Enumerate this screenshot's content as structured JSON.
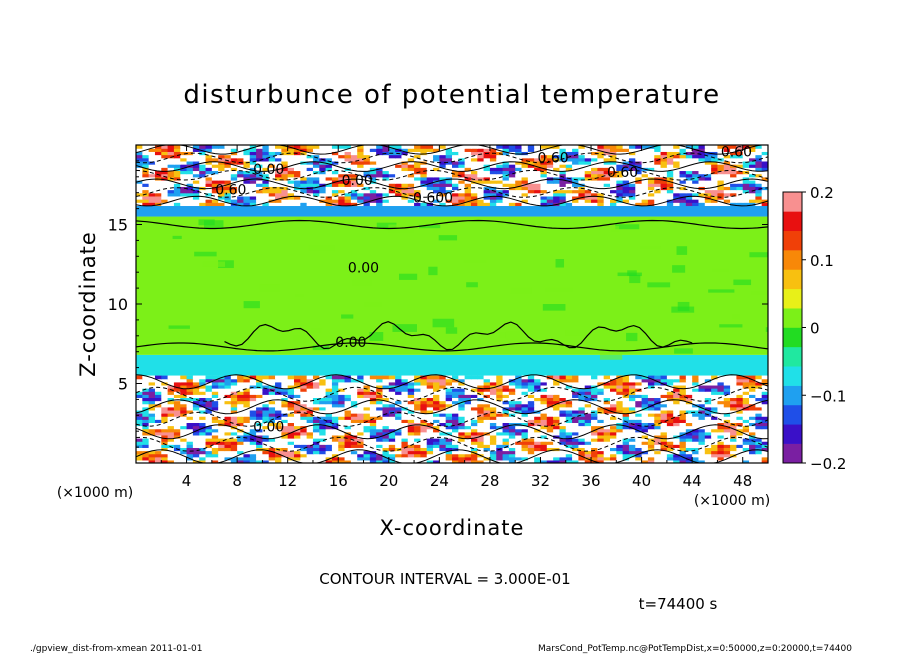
{
  "chart_data": {
    "type": "heatmap",
    "title": "disturbunce of potential temperature",
    "xlabel": "X-coordinate",
    "ylabel": "Z-coordinate",
    "x_unit": "(×1000 m)",
    "z_unit": "(×1000 m)",
    "xlim": [
      0,
      50
    ],
    "ylim": [
      0,
      20
    ],
    "x_ticks": [
      "4",
      "8",
      "12",
      "16",
      "20",
      "24",
      "28",
      "32",
      "36",
      "40",
      "44",
      "48"
    ],
    "y_ticks": [
      "5",
      "10",
      "15"
    ],
    "colorbar": {
      "range": [
        -0.2,
        0.2
      ],
      "tick_labels": [
        "0.2",
        "0.1",
        "0",
        "−0.1",
        "−0.2"
      ],
      "colors": [
        "#7a1fa2",
        "#3a10c8",
        "#1f4fe8",
        "#1fa0f0",
        "#20e0e8",
        "#20e8a0",
        "#22dc22",
        "#7cf018",
        "#e8f018",
        "#f8c010",
        "#f88808",
        "#f04008",
        "#e81010",
        "#f89090"
      ]
    },
    "layers": [
      {
        "z": [
          0,
          5.5
        ],
        "description": "strong mixed disturbances",
        "dominant_values": [
          -0.2,
          0.2
        ]
      },
      {
        "z": [
          5.5,
          6.8
        ],
        "value": -0.08
      },
      {
        "z": [
          6.8,
          15.5
        ],
        "value": 0.0
      },
      {
        "z": [
          15.5,
          16.2
        ],
        "value": -0.1
      },
      {
        "z": [
          16.2,
          20
        ],
        "description": "strong mixed disturbances",
        "dominant_values": [
          -0.2,
          0.2
        ]
      }
    ],
    "contour_labels": [
      "0.60",
      "0.00",
      "0.60",
      "0.00",
      "0.60",
      "0.600",
      "0.60",
      "0.00",
      "0.00",
      "0.00"
    ],
    "contour_interval": "CONTOUR INTERVAL = 3.000E-01",
    "time_label": "t=74400 s"
  },
  "footer": {
    "left": "./gpview_dist-from-xmean  2011-01-01",
    "right": "MarsCond_PotTemp.nc@PotTempDist,x=0:50000,z=0:20000,t=74400"
  }
}
